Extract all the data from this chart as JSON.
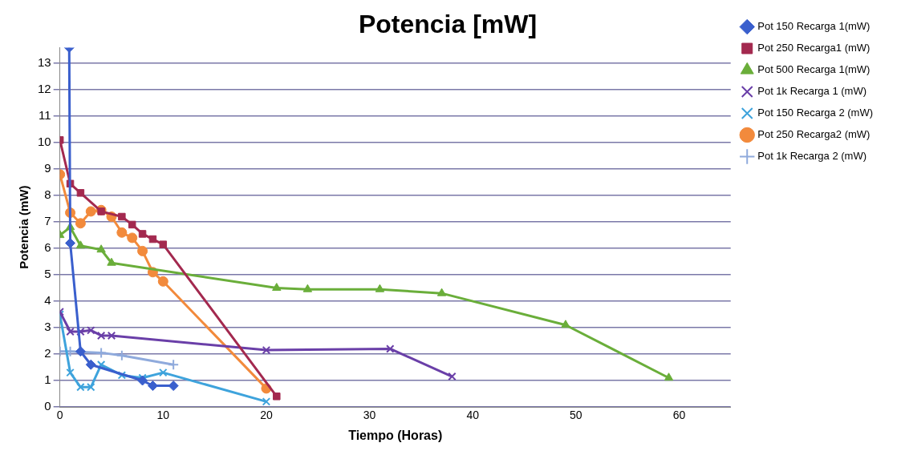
{
  "chart_data": {
    "type": "line",
    "title": "Potencia [mW]",
    "xlabel": "Tiempo (Horas)",
    "ylabel": "Potencia (mW)",
    "xlim": [
      0,
      65
    ],
    "xticks": [
      0,
      10,
      20,
      30,
      40,
      50,
      60
    ],
    "ylim": [
      0,
      13.6
    ],
    "yticks": [
      0,
      1,
      2,
      3,
      4,
      5,
      6,
      7,
      8,
      9,
      10,
      11,
      12,
      13
    ],
    "grid": "y",
    "legend": "right",
    "line_style": "solid",
    "series": [
      {
        "name": "Pot 150 Recarga 1(mW)",
        "color": "#3a5fcd",
        "marker": "diamond",
        "x": [
          0.9,
          1,
          2,
          3,
          8,
          9,
          11
        ],
        "values": [
          13.6,
          6.2,
          2.1,
          1.6,
          1.0,
          0.8,
          0.8
        ]
      },
      {
        "name": "Pot 250 Recarga1 (mW)",
        "color": "#a3294f",
        "marker": "square",
        "x": [
          0,
          1,
          2,
          4,
          6,
          7,
          8,
          9,
          10,
          21
        ],
        "values": [
          10.1,
          8.45,
          8.1,
          7.4,
          7.2,
          6.9,
          6.55,
          6.35,
          6.15,
          0.4
        ]
      },
      {
        "name": "Pot 500 Recarga 1(mW)",
        "color": "#6aae3a",
        "marker": "triangle",
        "x": [
          0,
          1,
          2,
          4,
          5,
          21,
          24,
          31,
          37,
          49,
          59
        ],
        "values": [
          6.5,
          6.8,
          6.1,
          5.95,
          5.45,
          4.5,
          4.45,
          4.45,
          4.3,
          3.1,
          1.1
        ]
      },
      {
        "name": "Pot 1k Recarga 1 (mW)",
        "color": "#6a3fa8",
        "marker": "cross",
        "x": [
          0,
          1,
          2,
          3,
          4,
          5,
          20,
          32,
          38
        ],
        "values": [
          3.6,
          2.85,
          2.85,
          2.9,
          2.7,
          2.7,
          2.15,
          2.2,
          1.15
        ]
      },
      {
        "name": "Pot 150 Recarga 2 (mW)",
        "color": "#3ea3dc",
        "marker": "cross",
        "x": [
          0,
          1,
          2,
          3,
          4,
          6,
          8,
          10,
          20
        ],
        "values": [
          3.5,
          1.3,
          0.75,
          0.75,
          1.6,
          1.2,
          1.1,
          1.3,
          0.2
        ]
      },
      {
        "name": "Pot 250 Recarga2 (mW)",
        "color": "#f28a3c",
        "marker": "circle",
        "x": [
          0,
          1,
          2,
          3,
          4,
          5,
          6,
          7,
          8,
          9,
          10,
          20
        ],
        "values": [
          8.8,
          7.35,
          6.95,
          7.4,
          7.45,
          7.2,
          6.6,
          6.4,
          5.9,
          5.1,
          4.75,
          0.7
        ]
      },
      {
        "name": "Pot 1k Recarga 2 (mW)",
        "color": "#8faadc",
        "marker": "plus",
        "x": [
          0,
          1,
          4,
          6,
          11
        ],
        "values": [
          2.1,
          2.1,
          2.05,
          1.95,
          1.6
        ]
      }
    ]
  }
}
